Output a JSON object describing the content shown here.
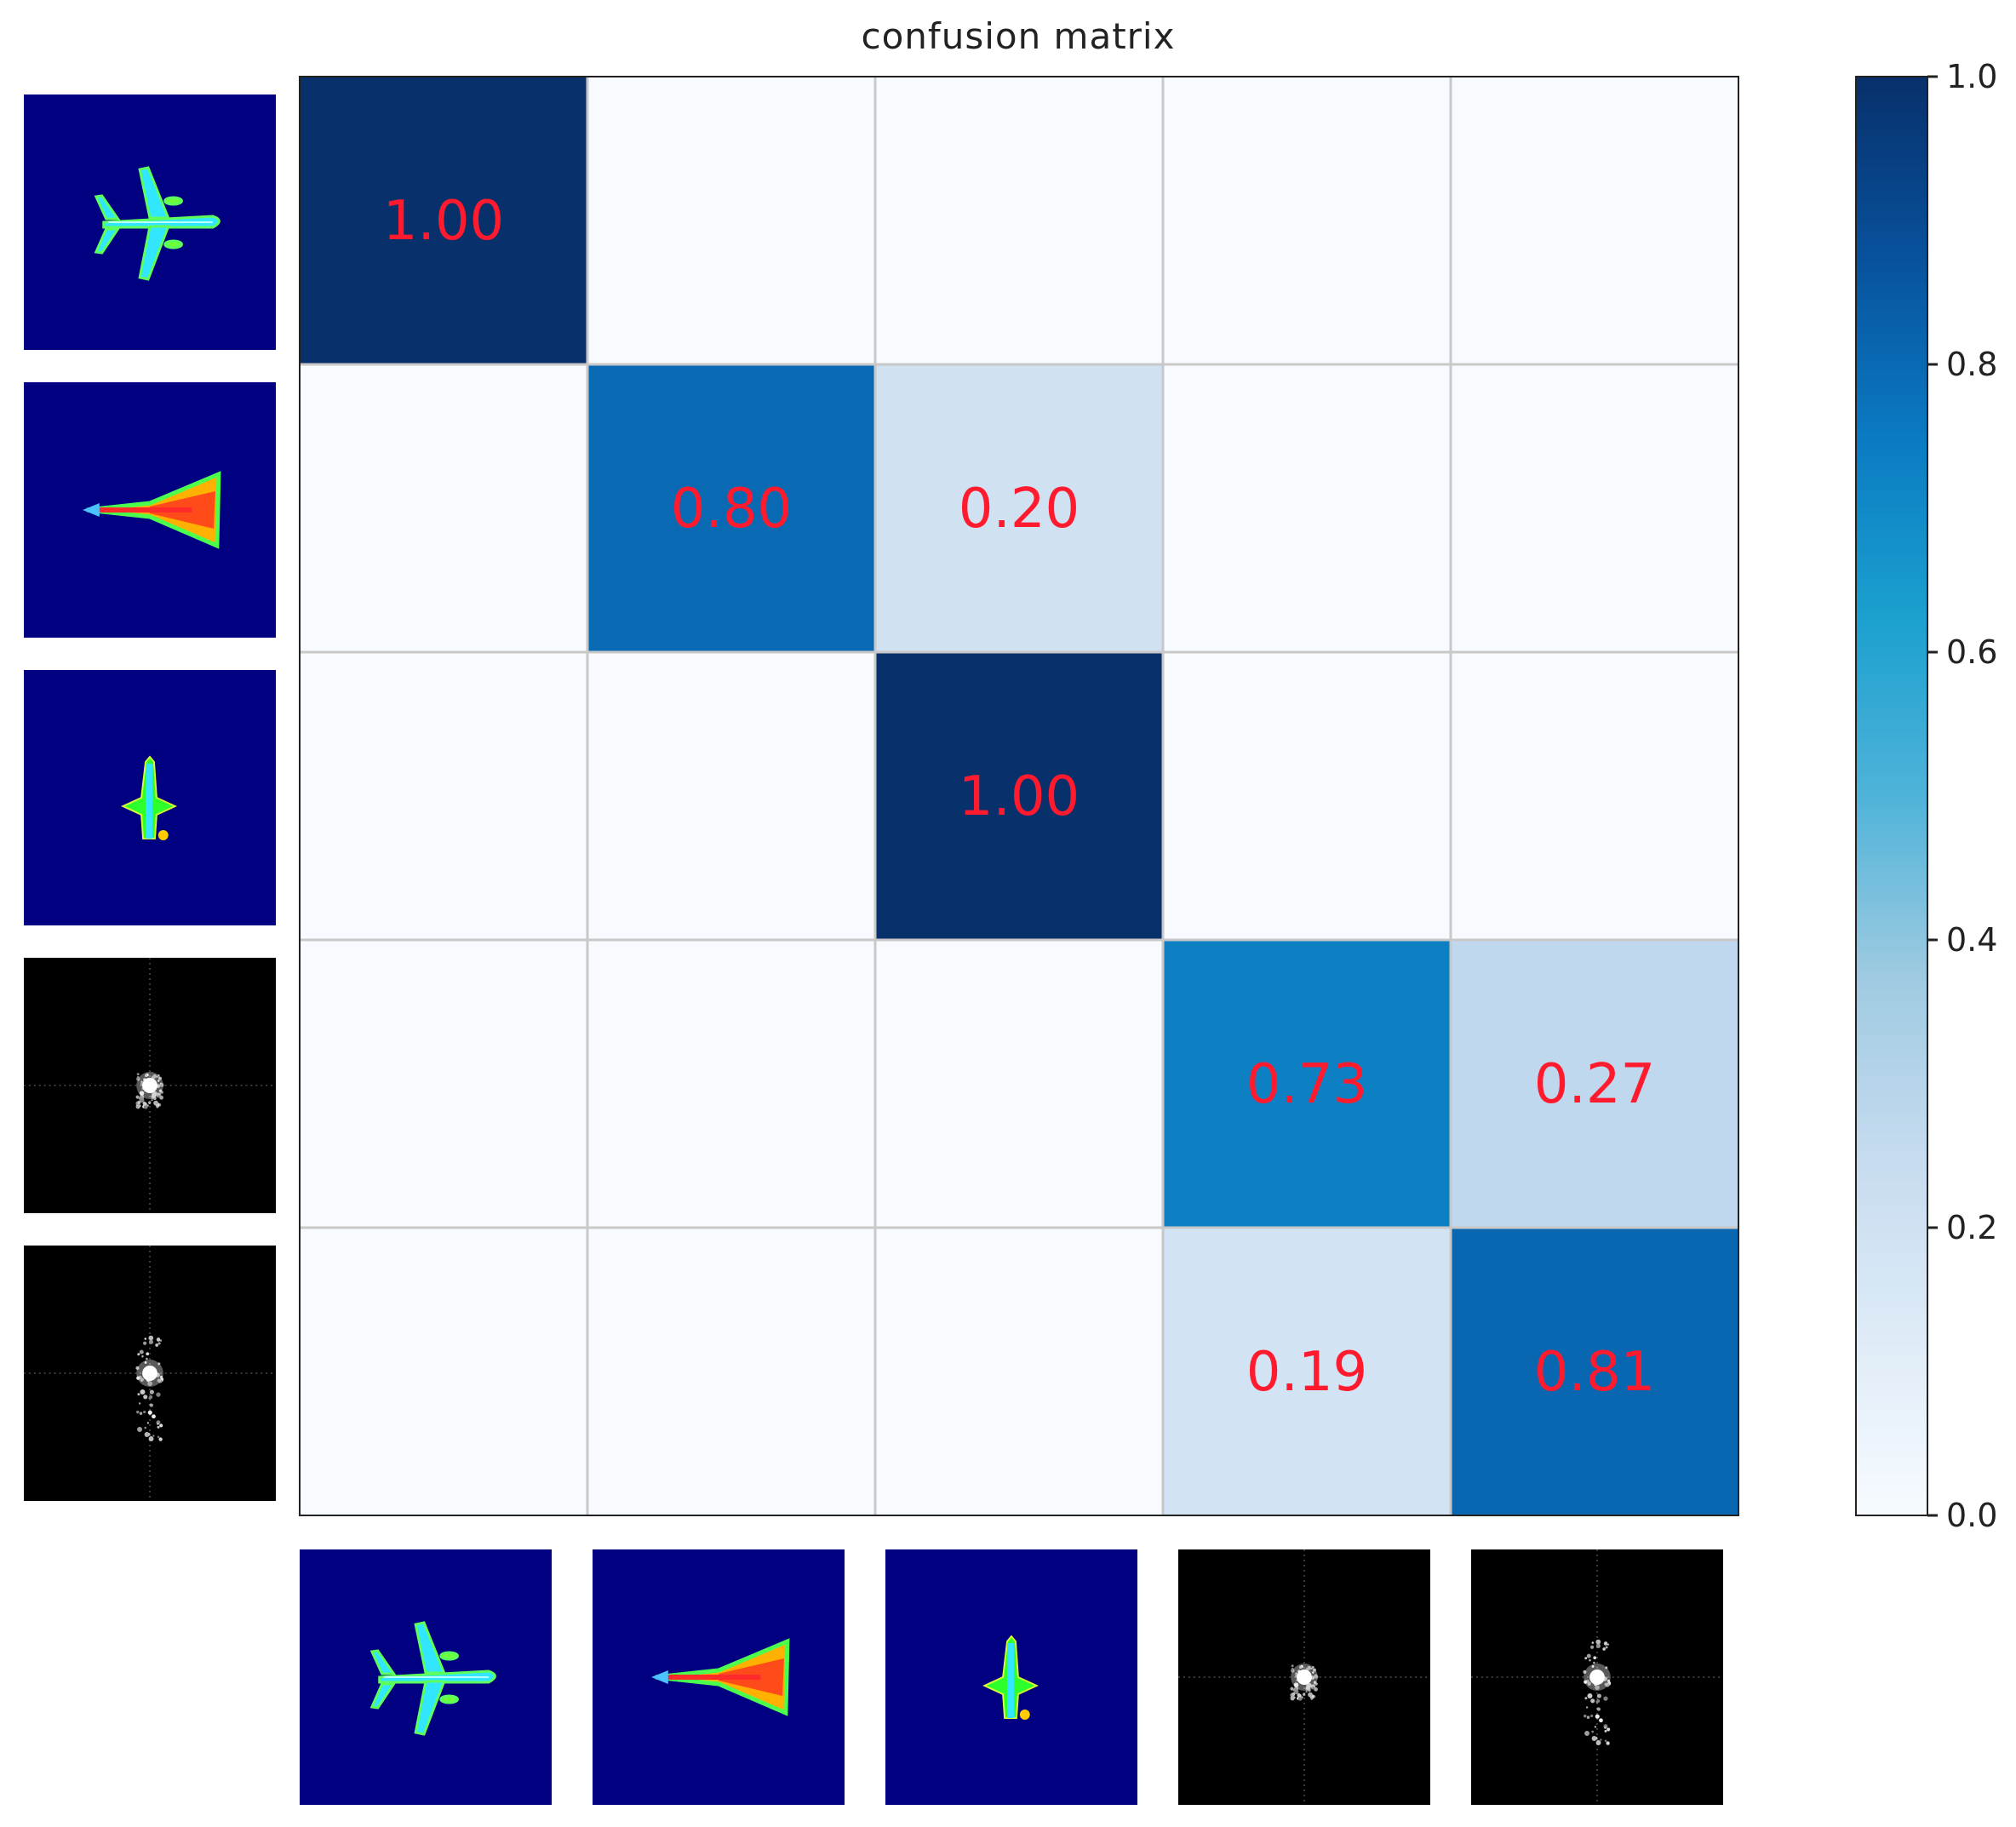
{
  "chart_data": {
    "type": "heatmap",
    "title": "confusion matrix",
    "n": 5,
    "values": [
      [
        1.0,
        0.0,
        0.0,
        0.0,
        0.0
      ],
      [
        0.0,
        0.8,
        0.2,
        0.0,
        0.0
      ],
      [
        0.0,
        0.0,
        1.0,
        0.0,
        0.0
      ],
      [
        0.0,
        0.0,
        0.0,
        0.73,
        0.27
      ],
      [
        0.0,
        0.0,
        0.0,
        0.19,
        0.81
      ]
    ],
    "cell_labels": [
      [
        "1.00",
        "",
        "",
        "",
        ""
      ],
      [
        "",
        "0.80",
        "0.20",
        "",
        ""
      ],
      [
        "",
        "",
        "1.00",
        "",
        ""
      ],
      [
        "",
        "",
        "",
        "0.73",
        "0.27"
      ],
      [
        "",
        "",
        "",
        "0.19",
        "0.81"
      ]
    ],
    "colormap": "Blues",
    "label_color": "#ff1a2e",
    "colorbar": {
      "range": [
        0.0,
        1.0
      ],
      "ticks": [
        0.0,
        0.2,
        0.4,
        0.6,
        0.8,
        1.0
      ],
      "tick_labels": [
        "0.0",
        "0.2",
        "0.4",
        "0.6",
        "0.8",
        "1.0"
      ]
    },
    "class_images": [
      "airliner-thermal",
      "delta-wing-thermal",
      "fighter-thermal",
      "radar-spectrum-a",
      "radar-spectrum-b"
    ]
  }
}
